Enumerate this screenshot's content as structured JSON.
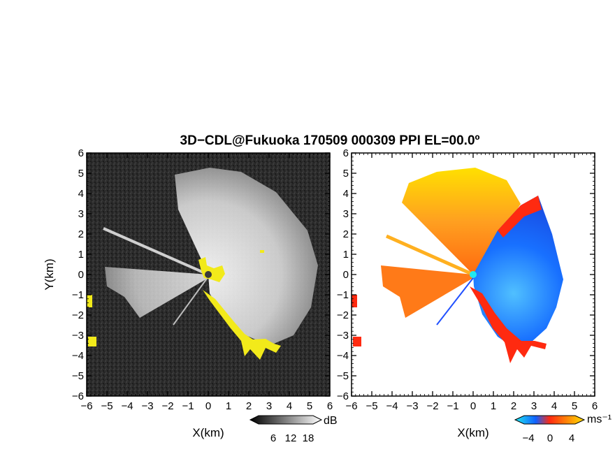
{
  "title": "3D−CDL@Fukuoka 170509 000309 PPI EL=00.0º",
  "colors": {
    "background_dark": "#2a2a2a",
    "highlight_yellow": "#f2ea1a",
    "vel_red": "#ff2a10",
    "vel_blue": "#1060ff",
    "vel_cyan": "#20e8f0"
  },
  "chart_data": [
    {
      "type": "heatmap",
      "panel": "reflectivity",
      "xlabel": "X(km)",
      "ylabel": "Y(km)",
      "xlim": [
        -6,
        6
      ],
      "ylim": [
        -6,
        6
      ],
      "x_ticks": [
        "−6",
        "−5",
        "−4",
        "−3",
        "−2",
        "−1",
        "0",
        "1",
        "2",
        "3",
        "4",
        "5",
        "6"
      ],
      "y_ticks": [
        "6",
        "5",
        "4",
        "3",
        "2",
        "1",
        "0",
        "−1",
        "−2",
        "−3",
        "−4",
        "−5",
        "−6"
      ],
      "colorbar": {
        "unit": "dB",
        "ticks": [
          "6",
          "12",
          "18"
        ],
        "colors": [
          "#000000",
          "#ffffff"
        ]
      }
    },
    {
      "type": "heatmap",
      "panel": "doppler-velocity",
      "xlabel": "X(km)",
      "xlim": [
        -6,
        6
      ],
      "ylim": [
        -6,
        6
      ],
      "x_ticks": [
        "−6",
        "−5",
        "−4",
        "−3",
        "−2",
        "−1",
        "0",
        "1",
        "2",
        "3",
        "4",
        "5",
        "6"
      ],
      "y_ticks": [
        "6",
        "5",
        "4",
        "3",
        "2",
        "1",
        "0",
        "−1",
        "−2",
        "−3",
        "−4",
        "−5",
        "−6"
      ],
      "colorbar": {
        "unit": "ms⁻¹",
        "ticks": [
          "−4",
          "0",
          "4"
        ],
        "colors": [
          "#20e8f0",
          "#1060ff",
          "#ff2a10",
          "#ffe000"
        ]
      }
    }
  ]
}
